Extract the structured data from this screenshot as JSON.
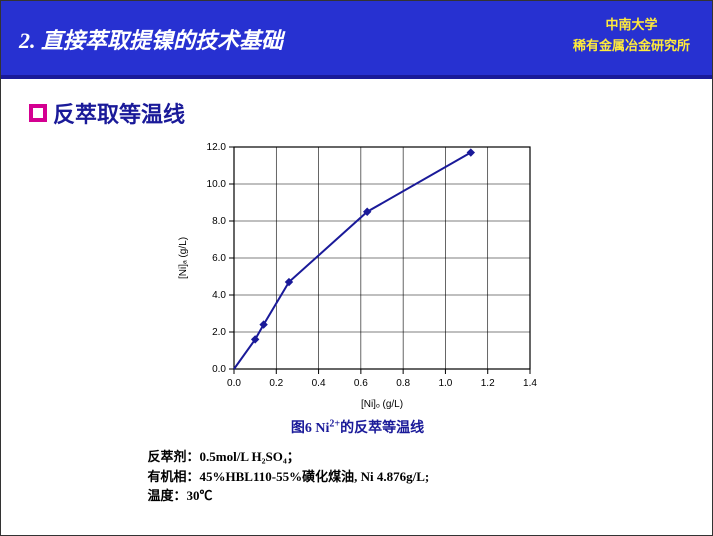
{
  "header": {
    "title": "2. 直接萃取提镍的技术基础",
    "affil_line1": "中南大学",
    "affil_line2": "稀有金属冶金研究所"
  },
  "section": {
    "title": "反萃取等温线"
  },
  "chart": {
    "type": "line-scatter",
    "xlabel": "[Ni]ₒ (g/L)",
    "ylabel": "[Ni]ₐ (g/L)",
    "xlim": [
      0.0,
      1.4
    ],
    "ylim": [
      0.0,
      12.0
    ],
    "xtick_step": 0.2,
    "ytick_step": 2.0,
    "xticks": [
      "0.0",
      "0.2",
      "0.4",
      "0.6",
      "0.8",
      "1.0",
      "1.2",
      "1.4"
    ],
    "yticks": [
      "0.0",
      "2.0",
      "4.0",
      "6.0",
      "8.0",
      "10.0",
      "12.0"
    ],
    "line_color": "#1a1a99",
    "line_width": 2,
    "marker_style": "diamond",
    "marker_color": "#1a1a99",
    "marker_size": 7,
    "grid_color": "#000000",
    "grid_width": 0.6,
    "background_color": "#ffffff",
    "label_fontsize": 10,
    "tick_fontsize": 10,
    "points": [
      {
        "x": 0.0,
        "y": 0.0
      },
      {
        "x": 0.1,
        "y": 1.6
      },
      {
        "x": 0.14,
        "y": 2.4
      },
      {
        "x": 0.26,
        "y": 4.7
      },
      {
        "x": 0.63,
        "y": 8.5
      },
      {
        "x": 1.12,
        "y": 11.7
      }
    ]
  },
  "caption": {
    "text_pre": "图6 Ni",
    "sup": "2+",
    "text_post": "的反萃等温线"
  },
  "notes": {
    "l1_label": "反萃剂：",
    "l1_value": "0.5mol/L H₂SO₄；",
    "l2_label": "有机相：",
    "l2_value": "45%HBL110-55%磺化煤油, Ni 4.876g/L;",
    "l3_label": "温度：",
    "l3_value": "30℃"
  }
}
